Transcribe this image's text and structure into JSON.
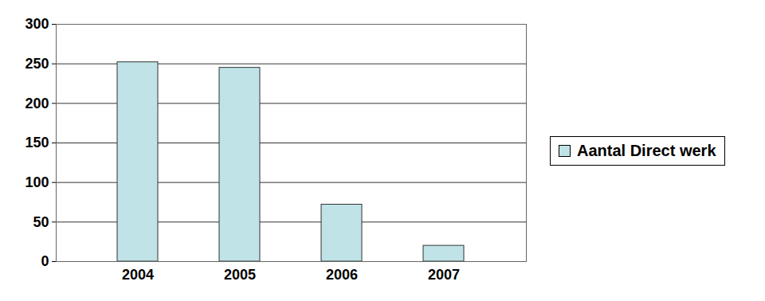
{
  "chart_data": {
    "type": "bar",
    "categories": [
      "2004",
      "2005",
      "2006",
      "2007"
    ],
    "series": [
      {
        "name": "Aantal Direct werk",
        "color": "#bfe3e6",
        "values": [
          252,
          245,
          72,
          20
        ]
      }
    ],
    "ylim": [
      0,
      300
    ],
    "yticks": [
      0,
      50,
      100,
      150,
      200,
      250,
      300
    ],
    "grid": true,
    "legend": "right"
  }
}
